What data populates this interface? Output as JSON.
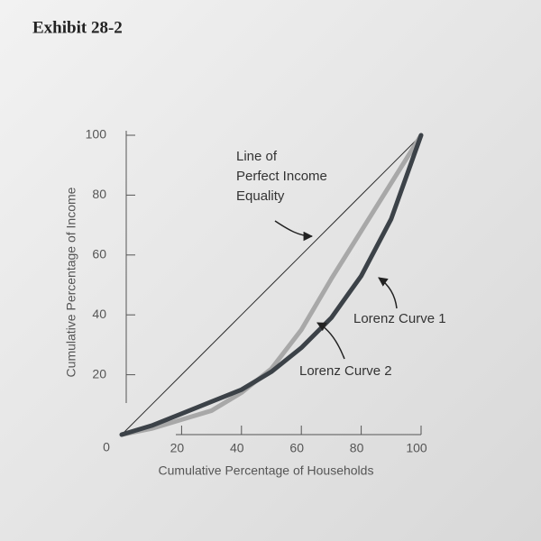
{
  "chart_data": {
    "type": "line",
    "title": "Exhibit 28-2",
    "x_label": "Cumulative Percentage of Households",
    "y_label": "Cumulative Percentage of Income",
    "x": [
      0,
      10,
      20,
      30,
      40,
      50,
      60,
      70,
      80,
      90,
      100
    ],
    "series": [
      {
        "color": "#2a2a2a",
        "width": 1,
        "values": [
          0,
          10,
          20,
          30,
          40,
          50,
          60,
          70,
          80,
          90,
          100
        ]
      },
      {
        "name": "Lorenz Curve 2",
        "color": "#a8a8a8",
        "width": 5,
        "values": [
          0,
          2,
          5,
          8,
          14,
          22,
          35,
          52,
          68,
          84,
          100
        ]
      },
      {
        "name": "Lorenz Curve 1",
        "color": "#3c4248",
        "width": 5,
        "values": [
          0,
          3,
          7,
          11,
          15,
          21,
          29,
          39,
          53,
          72,
          100
        ]
      }
    ],
    "annotation": [
      "Line of",
      "Perfect Income",
      "Equality"
    ],
    "origin_label": "0",
    "xlim": [
      0,
      100
    ],
    "ylim": [
      0,
      100
    ],
    "xticks": [
      20,
      40,
      60,
      80,
      100
    ],
    "yticks": [
      20,
      40,
      60,
      80,
      100
    ]
  }
}
